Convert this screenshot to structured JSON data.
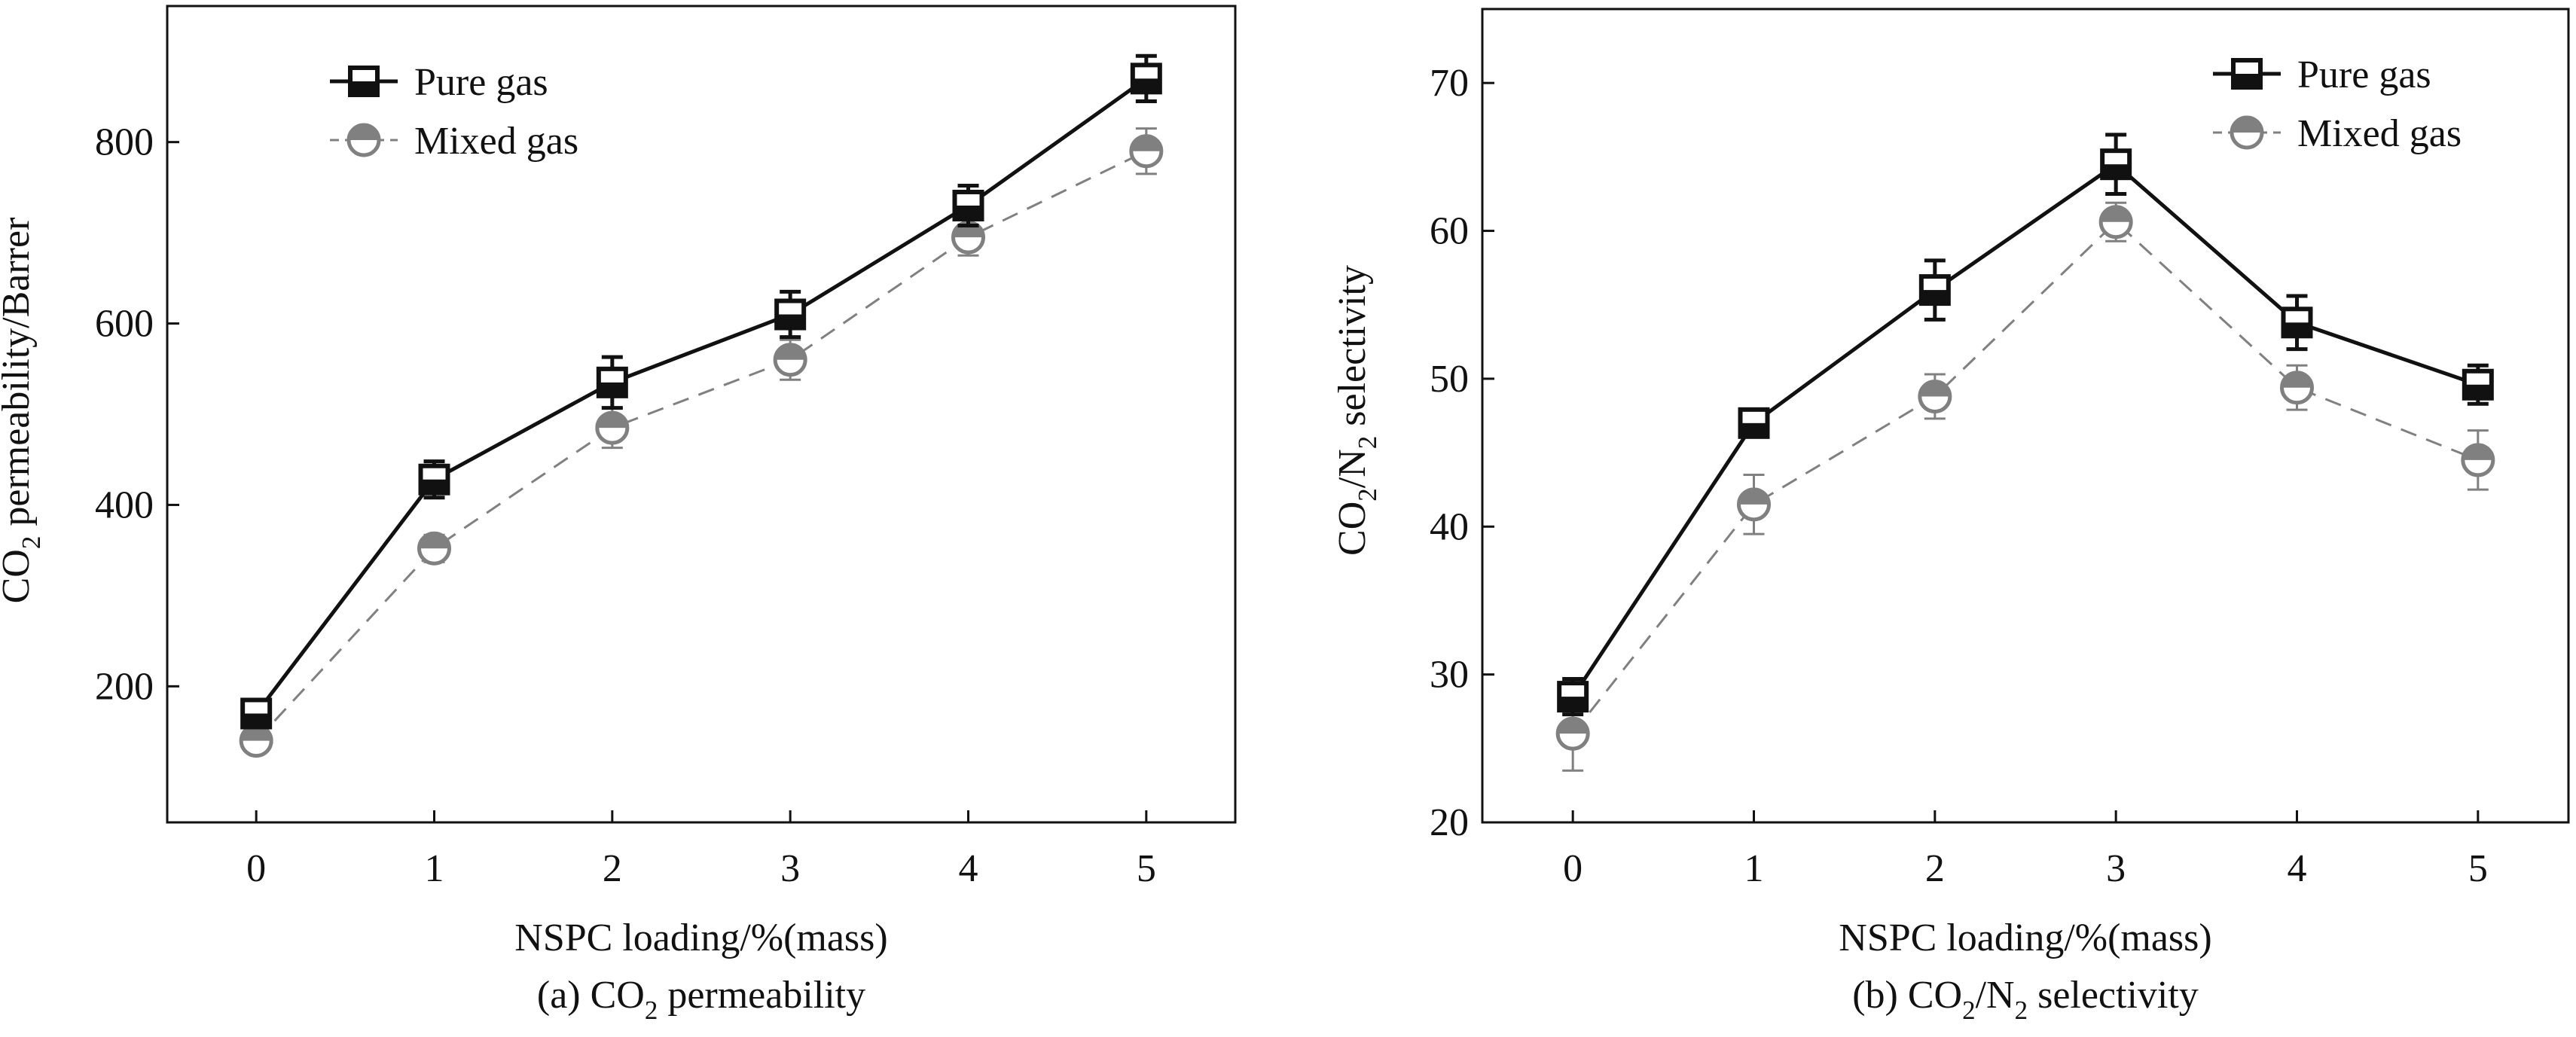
{
  "chart_data": [
    {
      "type": "line",
      "title": "CO2 permeability",
      "caption": {
        "prefix": "(a) CO",
        "sub": "2",
        "suffix": " permeability"
      },
      "xlabel": "NSPC loading/%(mass)",
      "ylabel": {
        "prefix": "CO",
        "sub": "2",
        "suffix": " permeability/Barrer"
      },
      "x": [
        0,
        1,
        2,
        3,
        4,
        5
      ],
      "xlim": [
        -0.5,
        5.5
      ],
      "ylim": [
        50,
        950
      ],
      "xticks": [
        0,
        1,
        2,
        3,
        4,
        5
      ],
      "yticks": [
        200,
        400,
        600,
        800
      ],
      "legend_position": "top-left",
      "series": [
        {
          "name": "Pure gas",
          "values": [
            170,
            428,
            535,
            610,
            730,
            870
          ],
          "errors": [
            15,
            20,
            28,
            25,
            22,
            25
          ],
          "color": "#111111",
          "line": "solid",
          "marker": "half-filled-square"
        },
        {
          "name": "Mixed gas",
          "values": [
            140,
            352,
            485,
            560,
            695,
            790
          ],
          "errors": [
            12,
            15,
            22,
            22,
            20,
            25
          ],
          "color": "#808080",
          "line": "dashed",
          "marker": "half-filled-circle"
        }
      ]
    },
    {
      "type": "line",
      "title": "CO2/N2 selectivity",
      "caption": {
        "prefix": "(b) CO",
        "sub": "2",
        "mid": "/N",
        "sub2": "2",
        "suffix": " selectivity"
      },
      "xlabel": "NSPC loading/%(mass)",
      "ylabel": {
        "prefix": "CO",
        "sub": "2",
        "mid": "/N",
        "sub2": "2",
        "suffix": " selectivity"
      },
      "x": [
        0,
        1,
        2,
        3,
        4,
        5
      ],
      "xlim": [
        -0.5,
        5.5
      ],
      "ylim": [
        20,
        75
      ],
      "xticks": [
        0,
        1,
        2,
        3,
        4,
        5
      ],
      "yticks": [
        20,
        30,
        40,
        50,
        60,
        70
      ],
      "legend_position": "top-right",
      "series": [
        {
          "name": "Pure gas",
          "values": [
            28.5,
            47,
            56,
            64.5,
            53.8,
            49.6
          ],
          "errors": [
            1.2,
            0.8,
            2.0,
            2.0,
            1.8,
            1.3
          ],
          "color": "#111111",
          "line": "solid",
          "marker": "half-filled-square"
        },
        {
          "name": "Mixed gas",
          "values": [
            26,
            41.5,
            48.8,
            60.6,
            49.4,
            44.5
          ],
          "errors": [
            2.5,
            2.0,
            1.5,
            1.3,
            1.5,
            2.0
          ],
          "color": "#808080",
          "line": "dashed",
          "marker": "half-filled-circle"
        }
      ]
    }
  ]
}
